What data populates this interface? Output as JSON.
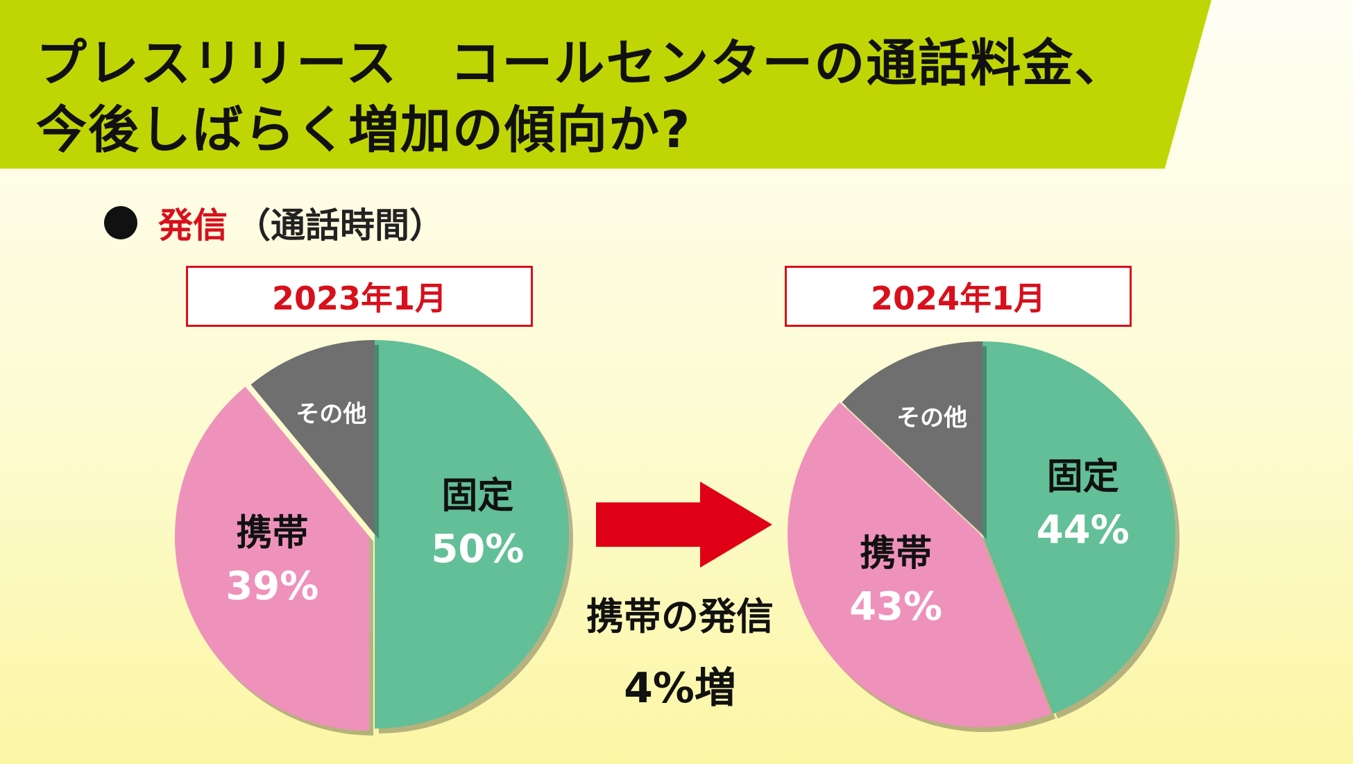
{
  "header": {
    "title_line1": "プレスリリース　コールセンターの通話料金、",
    "title_line2": "今後しばらく増加の傾向か?"
  },
  "section": {
    "main": "発信",
    "sub": "（通話時間）"
  },
  "colors": {
    "banner": "#c0d604",
    "fixed": "#62bf97",
    "mobile": "#ee92bb",
    "other": "#6f6f6f",
    "accent_red": "#d8101c"
  },
  "arrow": {
    "icon": "right-arrow-icon",
    "note_line1": "携帯の発信",
    "note_line2": "4%増"
  },
  "chart_data": [
    {
      "type": "pie",
      "title": "2023年1月",
      "slices": [
        {
          "name": "固定",
          "value": 50,
          "label": "50%"
        },
        {
          "name": "携帯",
          "value": 39,
          "label": "39%"
        },
        {
          "name": "その他",
          "value": 11,
          "label": ""
        }
      ]
    },
    {
      "type": "pie",
      "title": "2024年1月",
      "slices": [
        {
          "name": "固定",
          "value": 44,
          "label": "44%"
        },
        {
          "name": "携帯",
          "value": 43,
          "label": "43%"
        },
        {
          "name": "その他",
          "value": 13,
          "label": ""
        }
      ]
    }
  ]
}
